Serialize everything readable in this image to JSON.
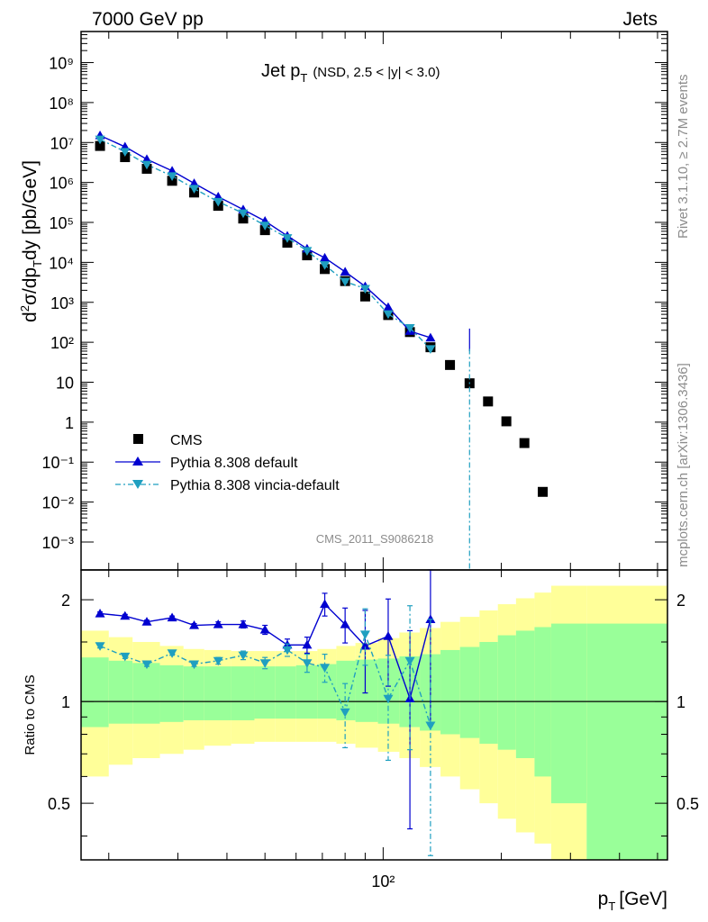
{
  "header": {
    "left": "7000 GeV pp",
    "right": "Jets"
  },
  "side_labels": {
    "rivet": "Rivet 3.1.10, ≥ 2.7M events",
    "mcplots": "mcplots.cern.ch [arXiv:1306.3436]"
  },
  "chart_data": [
    {
      "type": "scatter",
      "title_main": "Jet p",
      "title_sub": "T",
      "title_note": "(NSD, 2.5 < |y| < 3.0)",
      "watermark": "CMS_2011_S9086218",
      "ylabel": "d²σ/dp_T dy [pb/GeV]",
      "xscale": "log",
      "yscale": "log",
      "xlim": [
        17,
        530
      ],
      "ylim": [
        0.0002,
        6000000000
      ],
      "y_ticks": [
        "10⁻³",
        "10⁻²",
        "10⁻¹",
        "1",
        "10",
        "10²",
        "10³",
        "10⁴",
        "10⁵",
        "10⁶",
        "10⁷",
        "10⁸",
        "10⁹"
      ],
      "legend": {
        "position": "lower-left",
        "entries": [
          "CMS",
          "Pythia 8.308 default",
          "Pythia 8.308 vincia-default"
        ]
      },
      "x": [
        19,
        22,
        25,
        29,
        33,
        38,
        44,
        50,
        57,
        64,
        71,
        80,
        90,
        103,
        117,
        132,
        148,
        166,
        185,
        206,
        229,
        255,
        280,
        380
      ],
      "series": [
        {
          "name": "CMS",
          "marker": "square",
          "color": "#000000",
          "values": [
            8200000,
            4300000,
            2200000,
            1100000,
            560000,
            260000,
            125000,
            64000,
            31000,
            15000,
            6800,
            3400,
            1400,
            480,
            180,
            75,
            27,
            9.4,
            3.3,
            1.05,
            0.3,
            0.018,
            null,
            null
          ]
        },
        {
          "name": "Pythia 8.308 default",
          "marker": "triangle-up",
          "color": "#0000d0",
          "line": "solid",
          "values": [
            15000000,
            7800000,
            3800000,
            1950000,
            950000,
            440000,
            210000,
            108000,
            46000,
            22000,
            13000,
            5800,
            2500,
            750,
            190,
            130,
            null,
            null,
            null,
            null,
            null,
            null,
            null,
            null
          ]
        },
        {
          "name": "Pythia 8.308 vincia-default",
          "marker": "triangle-down",
          "color": "#1f9fc0",
          "line": "dash-dot",
          "values": [
            12000000,
            5900000,
            2800000,
            1450000,
            700000,
            330000,
            170000,
            84000,
            41000,
            19500,
            8600,
            3300,
            2200,
            510,
            230,
            68,
            null,
            null,
            null,
            null,
            null,
            null,
            null,
            null
          ]
        }
      ]
    },
    {
      "type": "scatter",
      "ylabel": "Ratio to CMS",
      "xlabel": "p_T [GeV]",
      "xscale": "log",
      "yscale": "log",
      "xlim": [
        17,
        530
      ],
      "ylim": [
        0.34,
        2.45
      ],
      "y_ticks": [
        "0.5",
        "1",
        "2"
      ],
      "x_ticks": [
        "10²"
      ],
      "reference_line": 1,
      "x": [
        19,
        22,
        25,
        29,
        33,
        38,
        44,
        50,
        57,
        64,
        71,
        80,
        90,
        103,
        117,
        132,
        148
      ],
      "series": [
        {
          "name": "Pythia 8.308 default",
          "marker": "triangle-up",
          "color": "#0000d0",
          "values": [
            1.82,
            1.79,
            1.72,
            1.77,
            1.68,
            1.69,
            1.69,
            1.63,
            1.47,
            1.47,
            1.94,
            1.69,
            1.46,
            1.56,
            1.02,
            1.75,
            null
          ],
          "err": [
            0.02,
            0.02,
            0.02,
            0.02,
            0.02,
            0.03,
            0.04,
            0.05,
            0.06,
            0.08,
            0.15,
            0.2,
            0.4,
            0.45,
            0.6,
            0.9,
            null
          ]
        },
        {
          "name": "Pythia 8.308 vincia-default",
          "marker": "triangle-down",
          "color": "#1f9fc0",
          "values": [
            1.46,
            1.36,
            1.29,
            1.39,
            1.29,
            1.32,
            1.37,
            1.3,
            1.42,
            1.3,
            1.26,
            0.93,
            1.58,
            1.02,
            1.32,
            0.85,
            null
          ],
          "err": [
            0.02,
            0.02,
            0.02,
            0.02,
            0.02,
            0.03,
            0.04,
            0.05,
            0.06,
            0.08,
            0.12,
            0.2,
            0.3,
            0.35,
            0.6,
            0.9,
            null
          ]
        }
      ],
      "bands": {
        "inner_color": "#99ff99",
        "outer_color": "#ffff99",
        "edges": [
          16,
          20,
          23,
          27,
          31,
          35,
          41,
          47,
          53,
          60,
          68,
          76,
          85,
          97,
          110,
          124,
          140,
          157,
          176,
          196,
          218,
          243,
          268,
          330,
          600
        ],
        "inner_lo": [
          0.84,
          0.86,
          0.86,
          0.87,
          0.88,
          0.88,
          0.88,
          0.89,
          0.89,
          0.89,
          0.89,
          0.88,
          0.87,
          0.86,
          0.84,
          0.82,
          0.8,
          0.78,
          0.75,
          0.72,
          0.68,
          0.6,
          0.5,
          0.34
        ],
        "inner_hi": [
          1.35,
          1.32,
          1.3,
          1.28,
          1.27,
          1.27,
          1.27,
          1.27,
          1.27,
          1.28,
          1.29,
          1.32,
          1.33,
          1.34,
          1.36,
          1.38,
          1.42,
          1.45,
          1.5,
          1.57,
          1.62,
          1.66,
          1.7,
          1.7
        ],
        "outer_lo": [
          0.6,
          0.65,
          0.68,
          0.7,
          0.72,
          0.74,
          0.75,
          0.76,
          0.76,
          0.76,
          0.76,
          0.75,
          0.73,
          0.71,
          0.68,
          0.64,
          0.6,
          0.55,
          0.5,
          0.45,
          0.41,
          0.38,
          0.34,
          0.34
        ],
        "outer_hi": [
          1.62,
          1.55,
          1.5,
          1.46,
          1.43,
          1.42,
          1.41,
          1.41,
          1.41,
          1.41,
          1.43,
          1.46,
          1.49,
          1.54,
          1.6,
          1.65,
          1.72,
          1.78,
          1.86,
          1.94,
          2.02,
          2.1,
          2.2,
          2.2
        ]
      }
    }
  ]
}
